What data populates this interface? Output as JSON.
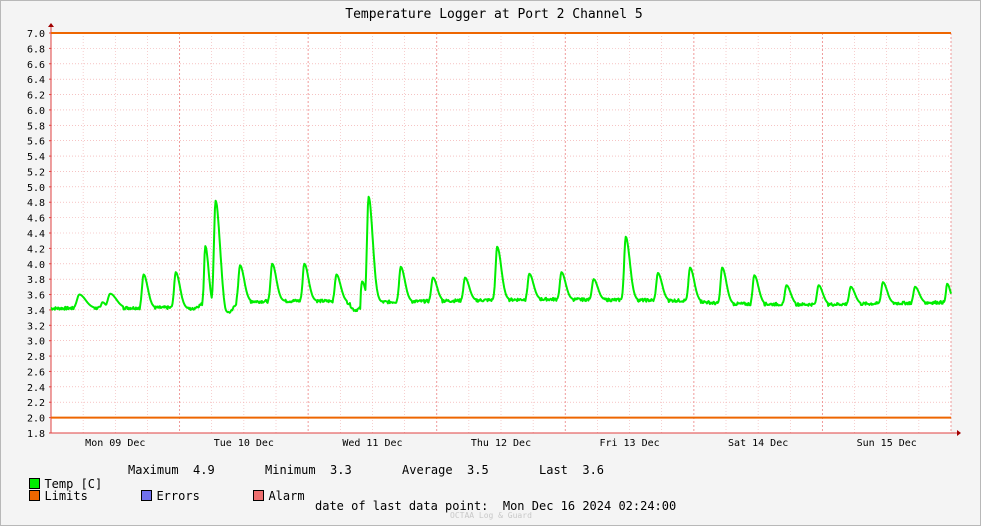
{
  "chart_data": {
    "type": "line",
    "title": "Temperature Logger at Port 2 Channel 5",
    "ylim": [
      1.8,
      7.0
    ],
    "y_ticks": [
      "7.0",
      "6.8",
      "6.6",
      "6.4",
      "6.2",
      "6.0",
      "5.8",
      "5.6",
      "5.4",
      "5.2",
      "5.0",
      "4.8",
      "4.6",
      "4.4",
      "4.2",
      "4.0",
      "3.8",
      "3.6",
      "3.4",
      "3.2",
      "3.0",
      "2.8",
      "2.6",
      "2.4",
      "2.2",
      "2.0",
      "1.8"
    ],
    "x_ticks": [
      "Mon 09 Dec",
      "Tue 10 Dec",
      "Wed 11 Dec",
      "Thu 12 Dec",
      "Fri 13 Dec",
      "Sat 14 Dec",
      "Sun 15 Dec"
    ],
    "x_range_days": [
      0,
      7
    ],
    "grid": true,
    "limits": {
      "upper": 7.0,
      "lower": 2.0,
      "color": "#ee6600"
    },
    "series": [
      {
        "name": "Temp [C]",
        "color": "#00ee00",
        "baseline": [
          [
            0,
            3.42
          ],
          [
            1.0,
            3.43
          ],
          [
            1.1,
            3.41
          ],
          [
            1.2,
            3.5
          ],
          [
            2.0,
            3.52
          ],
          [
            2.5,
            3.5
          ],
          [
            3.8,
            3.54
          ],
          [
            5.0,
            3.52
          ],
          [
            5.2,
            3.48
          ],
          [
            6.0,
            3.47
          ],
          [
            7.0,
            3.5
          ]
        ],
        "spikes": [
          {
            "t": 0.22,
            "v": 3.6,
            "w": 0.03
          },
          {
            "t": 0.4,
            "v": 3.5,
            "w": 0.015
          },
          {
            "t": 0.46,
            "v": 3.61,
            "w": 0.03
          },
          {
            "t": 0.72,
            "v": 3.86,
            "w": 0.02
          },
          {
            "t": 0.97,
            "v": 3.89,
            "w": 0.02
          },
          {
            "t": 1.2,
            "v": 4.23,
            "w": 0.015
          },
          {
            "t": 1.26,
            "v": 3.45,
            "w": 0.02
          },
          {
            "t": 1.28,
            "v": 4.82,
            "w": 0.02
          },
          {
            "t": 1.33,
            "v": 3.63,
            "w": 0.015
          },
          {
            "t": 1.36,
            "v": 3.34,
            "w": 0.03
          },
          {
            "t": 1.47,
            "v": 3.98,
            "w": 0.02
          },
          {
            "t": 1.72,
            "v": 4.0,
            "w": 0.02
          },
          {
            "t": 1.97,
            "v": 4.0,
            "w": 0.02
          },
          {
            "t": 2.22,
            "v": 3.86,
            "w": 0.02
          },
          {
            "t": 2.36,
            "v": 3.4,
            "w": 0.04
          },
          {
            "t": 2.42,
            "v": 3.77,
            "w": 0.015
          },
          {
            "t": 2.47,
            "v": 4.87,
            "w": 0.02
          },
          {
            "t": 2.72,
            "v": 3.96,
            "w": 0.02
          },
          {
            "t": 2.97,
            "v": 3.82,
            "w": 0.02
          },
          {
            "t": 3.22,
            "v": 3.82,
            "w": 0.02
          },
          {
            "t": 3.47,
            "v": 4.22,
            "w": 0.02
          },
          {
            "t": 3.72,
            "v": 3.87,
            "w": 0.02
          },
          {
            "t": 3.97,
            "v": 3.89,
            "w": 0.02
          },
          {
            "t": 4.22,
            "v": 3.8,
            "w": 0.02
          },
          {
            "t": 4.47,
            "v": 4.35,
            "w": 0.02
          },
          {
            "t": 4.72,
            "v": 3.88,
            "w": 0.02
          },
          {
            "t": 4.97,
            "v": 3.95,
            "w": 0.02
          },
          {
            "t": 5.22,
            "v": 3.95,
            "w": 0.02
          },
          {
            "t": 5.47,
            "v": 3.85,
            "w": 0.02
          },
          {
            "t": 5.72,
            "v": 3.72,
            "w": 0.02
          },
          {
            "t": 5.97,
            "v": 3.72,
            "w": 0.02
          },
          {
            "t": 6.22,
            "v": 3.7,
            "w": 0.02
          },
          {
            "t": 6.47,
            "v": 3.76,
            "w": 0.02
          },
          {
            "t": 6.72,
            "v": 3.7,
            "w": 0.02
          },
          {
            "t": 6.97,
            "v": 3.74,
            "w": 0.015
          },
          {
            "t": 7.0,
            "v": 3.6,
            "w": 0.01
          }
        ]
      }
    ]
  },
  "legend": {
    "temp_label": "Temp [C]",
    "temp_color": "#00ee00",
    "limits_label": "Limits",
    "limits_color": "#ee6600",
    "errors_label": "Errors",
    "errors_color": "#7070ee",
    "alarm_label": "Alarm",
    "alarm_color": "#ee7070"
  },
  "stats": {
    "maximum_label": "Maximum",
    "maximum_value": "4.9",
    "minimum_label": "Minimum",
    "minimum_value": "3.3",
    "average_label": "Average",
    "average_value": "3.5",
    "last_label": "Last",
    "last_value": "3.6"
  },
  "footer": {
    "label": "date of last data point:",
    "value": "Mon Dec 16 2024 02:24:00",
    "watermark": "OCTAA Log & Guard"
  }
}
